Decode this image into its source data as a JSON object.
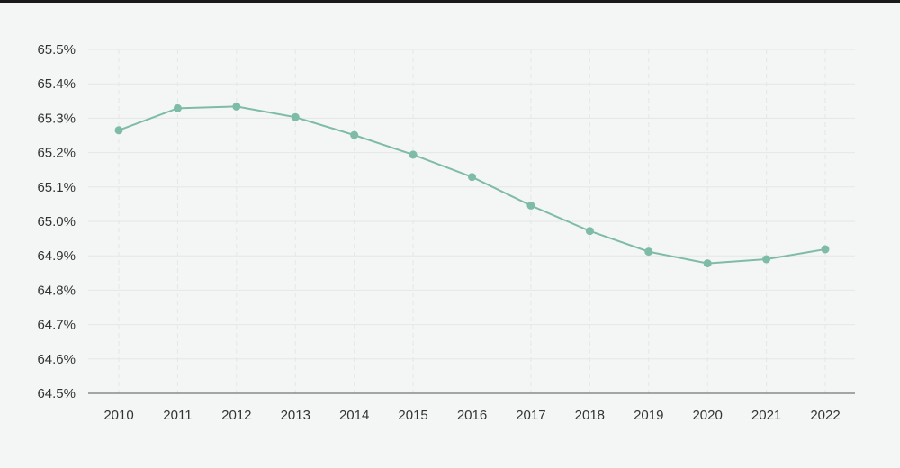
{
  "colors": {
    "line": "#7fbca7",
    "grid": "#e4e7e6",
    "axis": "#555555",
    "background": "#f4f6f5"
  },
  "chart_data": {
    "type": "line",
    "title": "",
    "xlabel": "",
    "ylabel": "",
    "x": [
      "2010",
      "2011",
      "2012",
      "2013",
      "2014",
      "2015",
      "2016",
      "2017",
      "2018",
      "2019",
      "2020",
      "2021",
      "2022"
    ],
    "series": [
      {
        "values": [
          65.265,
          65.329,
          65.334,
          65.303,
          65.251,
          65.194,
          65.129,
          65.046,
          64.972,
          64.912,
          64.878,
          64.89,
          64.919
        ]
      }
    ],
    "ylim": [
      64.5,
      65.5
    ],
    "yticks": [
      65.5,
      65.4,
      65.3,
      65.2,
      65.1,
      65.0,
      64.9,
      64.8,
      64.7,
      64.6,
      64.5
    ],
    "ytick_labels": [
      "65.5%",
      "65.4%",
      "65.3%",
      "65.2%",
      "65.1%",
      "65.0%",
      "64.9%",
      "64.8%",
      "64.7%",
      "64.6%",
      "64.5%"
    ],
    "grid": true,
    "legend": "none"
  }
}
